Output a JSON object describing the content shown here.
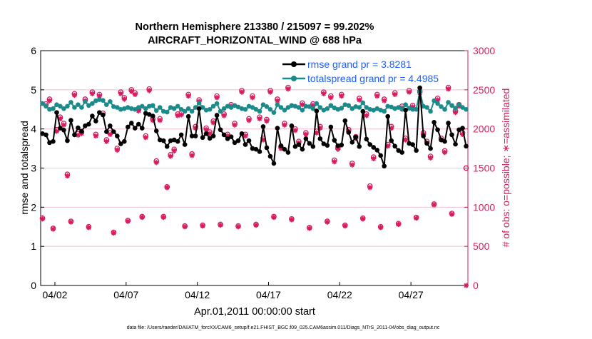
{
  "title_line1": "Northern Hemisphere 213380 / 215097 = 99.202%",
  "title_line2": "AIRCRAFT_HORIZONTAL_WIND @ 688 hPa",
  "footer": "data file: /Users/raeder/DAI/ATM_forcXX/CAM6_setup/f.e21.FHIST_BGC.f09_025.CAM6assim.011/Diags_NTrS_2011-04/obs_diag_output.nc",
  "colors": {
    "rmse": "#000000",
    "spread": "#1b8a8a",
    "obs": "#d81b60",
    "legend_text": "#1f5fff",
    "grid": "#d7d7d7"
  },
  "chart_data": {
    "type": "line",
    "xlabel": "Apr.01,2011 00:00:00 start",
    "ylabel_left": "rmse and totalspread",
    "ylabel_right": "# of obs: o=possible; ∗=assimilated",
    "xlim": [
      0.5,
      30.5
    ],
    "ylim_left": [
      0,
      6
    ],
    "ylim_right": [
      0,
      3000
    ],
    "x_ticks": [
      1.5,
      6.5,
      11.5,
      16.5,
      21.5,
      26.5
    ],
    "x_tick_labels": [
      "04/02",
      "04/07",
      "04/12",
      "04/17",
      "04/22",
      "04/27"
    ],
    "y_ticks_left": [
      0,
      1,
      2,
      3,
      4,
      5,
      6
    ],
    "y_tick_labels_left": [
      "0",
      "1",
      "2",
      "3",
      "4",
      "5",
      "6"
    ],
    "y_ticks_right": [
      0,
      500,
      1000,
      1500,
      2000,
      2500,
      3000
    ],
    "y_tick_labels_right": [
      "0",
      "500",
      "1000",
      "1500",
      "2000",
      "2500",
      "3000"
    ],
    "legend": [
      {
        "name": "rmse grand pr = 3.8281",
        "series": "rmse"
      },
      {
        "name": "totalspread grand pr = 4.4985",
        "series": "spread"
      }
    ],
    "series": [
      {
        "name": "rmse",
        "axis": "left",
        "x": [
          0.625,
          0.875,
          1.125,
          1.375,
          1.625,
          1.875,
          2.125,
          2.375,
          2.625,
          2.875,
          3.125,
          3.375,
          3.625,
          3.875,
          4.125,
          4.375,
          4.625,
          4.875,
          5.125,
          5.375,
          5.625,
          5.875,
          6.125,
          6.375,
          6.625,
          6.875,
          7.125,
          7.375,
          7.625,
          7.875,
          8.125,
          8.375,
          8.625,
          8.875,
          9.125,
          9.375,
          9.625,
          9.875,
          10.125,
          10.375,
          10.625,
          10.875,
          11.125,
          11.375,
          11.625,
          11.875,
          12.125,
          12.375,
          12.625,
          12.875,
          13.125,
          13.375,
          13.625,
          13.875,
          14.125,
          14.375,
          14.625,
          14.875,
          15.125,
          15.375,
          15.625,
          15.875,
          16.125,
          16.375,
          16.625,
          16.875,
          17.125,
          17.375,
          17.625,
          17.875,
          18.125,
          18.375,
          18.625,
          18.875,
          19.125,
          19.375,
          19.625,
          19.875,
          20.125,
          20.375,
          20.625,
          20.875,
          21.125,
          21.375,
          21.625,
          21.875,
          22.125,
          22.375,
          22.625,
          22.875,
          23.125,
          23.375,
          23.625,
          23.875,
          24.125,
          24.375,
          24.625,
          24.875,
          25.125,
          25.375,
          25.625,
          25.875,
          26.125,
          26.375,
          26.625,
          26.875,
          27.125,
          27.375,
          27.625,
          27.875,
          28.125,
          28.375,
          28.625,
          28.875,
          29.125,
          29.375,
          29.625,
          29.875,
          30.125,
          30.375
        ],
        "values": [
          3.88,
          3.85,
          3.65,
          3.68,
          4.42,
          4.02,
          3.97,
          3.7,
          4.22,
          3.85,
          4.03,
          3.94,
          4.08,
          4.12,
          4.33,
          4.2,
          4.42,
          4.36,
          3.93,
          4.08,
          3.93,
          3.82,
          3.62,
          3.68,
          4.05,
          4.15,
          4.02,
          4.12,
          4.02,
          4.4,
          4.37,
          4.33,
          3.95,
          3.72,
          3.7,
          3.55,
          3.7,
          3.72,
          3.68,
          3.85,
          3.6,
          4.32,
          3.82,
          3.82,
          4.52,
          3.78,
          3.88,
          3.76,
          3.82,
          4.35,
          3.98,
          3.85,
          3.75,
          3.8,
          3.65,
          3.7,
          3.88,
          3.6,
          3.7,
          3.5,
          3.48,
          3.42,
          4.06,
          3.52,
          3.3,
          3.12,
          4.02,
          3.57,
          3.48,
          3.4,
          4.08,
          3.55,
          3.6,
          3.48,
          3.75,
          3.63,
          3.55,
          4.46,
          3.75,
          3.62,
          3.58,
          4.05,
          3.71,
          3.57,
          3.59,
          4.21,
          3.91,
          3.66,
          3.79,
          3.55,
          4.45,
          3.74,
          3.6,
          3.53,
          3.46,
          3.32,
          3.05,
          4.32,
          3.7,
          3.56,
          3.45,
          3.4,
          4.48,
          3.63,
          3.6,
          3.45,
          5.05,
          3.82,
          3.63,
          3.5,
          4.17,
          3.98,
          3.72,
          3.68,
          4.15,
          3.85,
          3.61,
          3.98,
          4.02,
          3.56
        ]
      },
      {
        "name": "totalspread",
        "axis": "left",
        "x": [
          0.625,
          0.875,
          1.125,
          1.375,
          1.625,
          1.875,
          2.125,
          2.375,
          2.625,
          2.875,
          3.125,
          3.375,
          3.625,
          3.875,
          4.125,
          4.375,
          4.625,
          4.875,
          5.125,
          5.375,
          5.625,
          5.875,
          6.125,
          6.375,
          6.625,
          6.875,
          7.125,
          7.375,
          7.625,
          7.875,
          8.125,
          8.375,
          8.625,
          8.875,
          9.125,
          9.375,
          9.625,
          9.875,
          10.125,
          10.375,
          10.625,
          10.875,
          11.125,
          11.375,
          11.625,
          11.875,
          12.125,
          12.375,
          12.625,
          12.875,
          13.125,
          13.375,
          13.625,
          13.875,
          14.125,
          14.375,
          14.625,
          14.875,
          15.125,
          15.375,
          15.625,
          15.875,
          16.125,
          16.375,
          16.625,
          16.875,
          17.125,
          17.375,
          17.625,
          17.875,
          18.125,
          18.375,
          18.625,
          18.875,
          19.125,
          19.375,
          19.625,
          19.875,
          20.125,
          20.375,
          20.625,
          20.875,
          21.125,
          21.375,
          21.625,
          21.875,
          22.125,
          22.375,
          22.625,
          22.875,
          23.125,
          23.375,
          23.625,
          23.875,
          24.125,
          24.375,
          24.625,
          24.875,
          25.125,
          25.375,
          25.625,
          25.875,
          26.125,
          26.375,
          26.625,
          26.875,
          27.125,
          27.375,
          27.625,
          27.875,
          28.125,
          28.375,
          28.625,
          28.875,
          29.125,
          29.375,
          29.625,
          29.875,
          30.125,
          30.375
        ],
        "values": [
          4.65,
          4.58,
          4.5,
          4.52,
          4.62,
          4.58,
          4.52,
          4.58,
          4.68,
          4.55,
          4.62,
          4.55,
          4.7,
          4.6,
          4.65,
          4.72,
          4.75,
          4.73,
          4.62,
          4.7,
          4.57,
          4.55,
          4.5,
          4.52,
          4.55,
          4.52,
          4.5,
          4.55,
          4.58,
          4.52,
          4.58,
          4.6,
          4.47,
          4.55,
          4.45,
          4.43,
          4.55,
          4.52,
          4.58,
          4.5,
          4.45,
          4.52,
          4.45,
          4.55,
          4.66,
          4.55,
          4.48,
          4.5,
          4.58,
          4.65,
          4.45,
          4.52,
          4.58,
          4.55,
          4.6,
          4.56,
          4.52,
          4.5,
          4.58,
          4.55,
          4.5,
          4.45,
          4.62,
          4.57,
          4.5,
          4.42,
          4.62,
          4.55,
          4.48,
          4.55,
          4.6,
          4.58,
          4.55,
          4.48,
          4.58,
          4.57,
          4.52,
          4.65,
          4.55,
          4.48,
          4.52,
          4.6,
          4.54,
          4.5,
          4.53,
          4.62,
          4.6,
          4.52,
          4.57,
          4.55,
          4.67,
          4.55,
          4.5,
          4.48,
          4.52,
          4.48,
          4.45,
          4.58,
          4.56,
          4.52,
          4.55,
          4.5,
          4.62,
          4.53,
          4.5,
          4.5,
          4.95,
          4.58,
          4.55,
          4.45,
          4.72,
          4.65,
          4.57,
          4.5,
          4.68,
          4.6,
          4.53,
          4.62,
          4.55,
          4.5
        ]
      },
      {
        "name": "obs_possible",
        "axis": "right",
        "x": [
          0.625,
          0.875,
          1.125,
          1.375,
          1.625,
          1.875,
          2.125,
          2.375,
          2.625,
          2.875,
          3.125,
          3.375,
          3.625,
          3.875,
          4.125,
          4.375,
          4.625,
          4.875,
          5.125,
          5.375,
          5.625,
          5.875,
          6.125,
          6.375,
          6.625,
          6.875,
          7.125,
          7.375,
          7.625,
          7.875,
          8.125,
          8.375,
          8.625,
          8.875,
          9.125,
          9.375,
          9.625,
          9.875,
          10.125,
          10.375,
          10.625,
          10.875,
          11.125,
          11.375,
          11.625,
          11.875,
          12.125,
          12.375,
          12.625,
          12.875,
          13.125,
          13.375,
          13.625,
          13.875,
          14.125,
          14.375,
          14.625,
          14.875,
          15.125,
          15.375,
          15.625,
          15.875,
          16.125,
          16.375,
          16.625,
          16.875,
          17.125,
          17.375,
          17.625,
          17.875,
          18.125,
          18.375,
          18.625,
          18.875,
          19.125,
          19.375,
          19.625,
          19.875,
          20.125,
          20.375,
          20.625,
          20.875,
          21.125,
          21.375,
          21.625,
          21.875,
          22.125,
          22.375,
          22.625,
          22.875,
          23.125,
          23.375,
          23.625,
          23.875,
          24.125,
          24.375,
          24.625,
          24.875,
          25.125,
          25.375,
          25.625,
          25.875,
          26.125,
          26.375,
          26.625,
          26.875,
          27.125,
          27.375,
          27.625,
          27.875,
          28.125,
          28.375,
          28.625,
          28.875,
          29.125,
          29.375,
          29.625,
          29.875,
          30.125,
          30.375
        ],
        "values": [
          860,
          2320,
          2380,
          730,
          1990,
          2150,
          2070,
          1420,
          820,
          2450,
          1940,
          1960,
          2380,
          750,
          2470,
          1930,
          2440,
          2200,
          1860,
          1950,
          680,
          1750,
          2470,
          2400,
          830,
          2500,
          2460,
          2250,
          880,
          1910,
          2510,
          2130,
          1590,
          2130,
          880,
          1260,
          1670,
          1740,
          2190,
          2200,
          760,
          2440,
          1680,
          2030,
          2370,
          770,
          2010,
          1960,
          2100,
          2420,
          780,
          2190,
          1930,
          2310,
          2070,
          760,
          2490,
          1930,
          2130,
          2420,
          780,
          2150,
          1880,
          2120,
          2490,
          880,
          2380,
          1770,
          2070,
          2530,
          850,
          2000,
          1840,
          2330,
          1950,
          740,
          2320,
          1970,
          2030,
          2470,
          820,
          2420,
          1600,
          1760,
          2440,
          770,
          1990,
          1560,
          1900,
          2390,
          860,
          2190,
          1270,
          1640,
          2440,
          750,
          2380,
          1800,
          2030,
          2460,
          790,
          2290,
          1880,
          2490,
          2300,
          870,
          2480,
          1950,
          1840,
          1650,
          1040,
          2390,
          1880,
          1720,
          2530,
          920,
          2230,
          2310,
          1950,
          1500
        ]
      },
      {
        "name": "obs_assimilated",
        "axis": "right",
        "x": [
          0.625,
          0.875,
          1.125,
          1.375,
          1.625,
          1.875,
          2.125,
          2.375,
          2.625,
          2.875,
          3.125,
          3.375,
          3.625,
          3.875,
          4.125,
          4.375,
          4.625,
          4.875,
          5.125,
          5.375,
          5.625,
          5.875,
          6.125,
          6.375,
          6.625,
          6.875,
          7.125,
          7.375,
          7.625,
          7.875,
          8.125,
          8.375,
          8.625,
          8.875,
          9.125,
          9.375,
          9.625,
          9.875,
          10.125,
          10.375,
          10.625,
          10.875,
          11.125,
          11.375,
          11.625,
          11.875,
          12.125,
          12.375,
          12.625,
          12.875,
          13.125,
          13.375,
          13.625,
          13.875,
          14.125,
          14.375,
          14.625,
          14.875,
          15.125,
          15.375,
          15.625,
          15.875,
          16.125,
          16.375,
          16.625,
          16.875,
          17.125,
          17.375,
          17.625,
          17.875,
          18.125,
          18.375,
          18.625,
          18.875,
          19.125,
          19.375,
          19.625,
          19.875,
          20.125,
          20.375,
          20.625,
          20.875,
          21.125,
          21.375,
          21.625,
          21.875,
          22.125,
          22.375,
          22.625,
          22.875,
          23.125,
          23.375,
          23.625,
          23.875,
          24.125,
          24.375,
          24.625,
          24.875,
          25.125,
          25.375,
          25.625,
          25.875,
          26.125,
          26.375,
          26.625,
          26.875,
          27.125,
          27.375,
          27.625,
          27.875,
          28.125,
          28.375,
          28.625,
          28.875,
          29.125,
          29.375,
          29.625,
          29.875,
          30.125,
          30.375
        ],
        "values": [
          850,
          2300,
          2360,
          720,
          1970,
          2130,
          2050,
          1400,
          810,
          2430,
          1920,
          1940,
          2360,
          740,
          2450,
          1910,
          2420,
          2180,
          1840,
          1930,
          670,
          1730,
          2450,
          2380,
          820,
          2480,
          2440,
          2230,
          870,
          1890,
          2490,
          2110,
          1570,
          2110,
          870,
          1250,
          1650,
          1720,
          2170,
          2180,
          750,
          2420,
          1660,
          2010,
          2350,
          760,
          1990,
          1940,
          2080,
          2400,
          770,
          2170,
          1910,
          2290,
          2050,
          750,
          2470,
          1910,
          2110,
          2400,
          770,
          2130,
          1860,
          2100,
          2470,
          870,
          2360,
          1750,
          2050,
          2510,
          840,
          1980,
          1820,
          2310,
          1930,
          730,
          2300,
          1950,
          2010,
          2450,
          810,
          2400,
          1580,
          1740,
          2420,
          760,
          1970,
          1540,
          1880,
          2370,
          850,
          2170,
          1250,
          1620,
          2420,
          740,
          2360,
          1780,
          2010,
          2440,
          780,
          2270,
          1860,
          2470,
          2280,
          860,
          2460,
          1930,
          1820,
          1630,
          1030,
          2370,
          1860,
          1700,
          2510,
          910,
          2210,
          2290,
          1930,
          0
        ]
      }
    ]
  }
}
